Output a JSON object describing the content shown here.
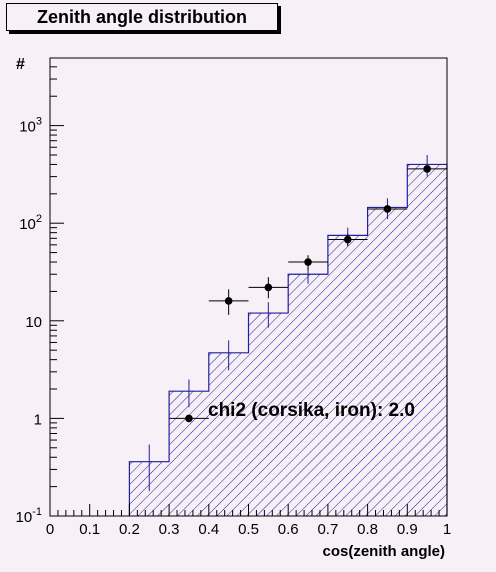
{
  "chart_data": {
    "type": "histogram",
    "title": "Zenith angle distribution",
    "xlabel": "cos(zenith angle)",
    "ylabel": "#",
    "xlim": [
      0,
      1
    ],
    "ylim": [
      0.1,
      5000
    ],
    "yscale": "log",
    "x_ticks": [
      "0",
      "0.1",
      "0.2",
      "0.3",
      "0.4",
      "0.5",
      "0.6",
      "0.7",
      "0.8",
      "0.9",
      "1"
    ],
    "y_ticks": [
      {
        "base": "10",
        "exp": "-1"
      },
      {
        "base": "1",
        "exp": ""
      },
      {
        "base": "10",
        "exp": ""
      },
      {
        "base": "10",
        "exp": "2"
      },
      {
        "base": "10",
        "exp": "3"
      }
    ],
    "annotation": "chi2 (corsika, iron): 2.0",
    "hist_bins": [
      {
        "x0": 0.2,
        "x1": 0.3,
        "value": 0.36,
        "err": 0.18
      },
      {
        "x0": 0.3,
        "x1": 0.4,
        "value": 1.9,
        "err": 0.6
      },
      {
        "x0": 0.4,
        "x1": 0.5,
        "value": 4.7,
        "err": 1.6
      },
      {
        "x0": 0.5,
        "x1": 0.6,
        "value": 12,
        "err": 3.5
      },
      {
        "x0": 0.6,
        "x1": 0.7,
        "value": 30,
        "err": 6
      },
      {
        "x0": 0.7,
        "x1": 0.8,
        "value": 75,
        "err": 15
      },
      {
        "x0": 0.8,
        "x1": 0.9,
        "value": 145,
        "err": 35
      },
      {
        "x0": 0.9,
        "x1": 1.0,
        "value": 400,
        "err": 100
      }
    ],
    "data_points": [
      {
        "x": 0.35,
        "y": 1.0,
        "xerr": 0.05
      },
      {
        "x": 0.45,
        "y": 16,
        "xerr": 0.05,
        "ylo": 11.5,
        "yhi": 21
      },
      {
        "x": 0.55,
        "y": 22,
        "xerr": 0.05,
        "ylo": 17,
        "yhi": 28
      },
      {
        "x": 0.65,
        "y": 40,
        "xerr": 0.05,
        "ylo": 33,
        "yhi": 47
      },
      {
        "x": 0.75,
        "y": 68,
        "xerr": 0.05,
        "ylo": 58,
        "yhi": 78
      },
      {
        "x": 0.85,
        "y": 140,
        "xerr": 0.05,
        "ylo": 126,
        "yhi": 154
      },
      {
        "x": 0.95,
        "y": 360,
        "xerr": 0.05,
        "ylo": 340,
        "yhi": 380
      }
    ],
    "colors": {
      "hist": "#1f1f9f",
      "points": "#000000",
      "background": "#f7f0f7"
    }
  }
}
